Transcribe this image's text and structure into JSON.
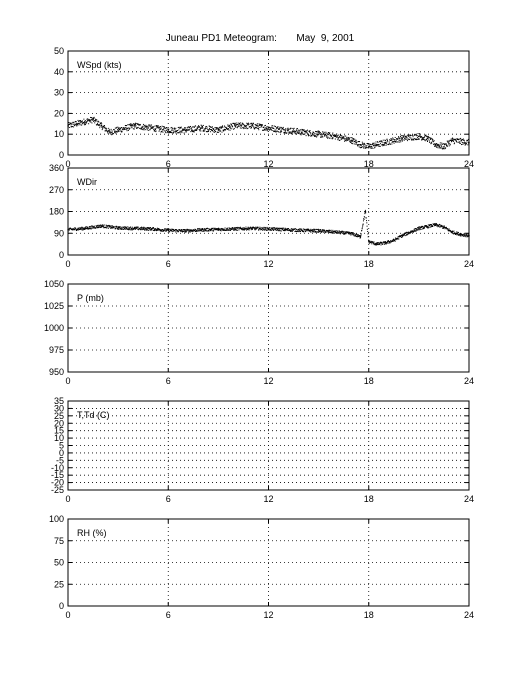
{
  "title": "Juneau PD1 Meteogram:       May  9, 2001",
  "chart_data": [
    {
      "type": "scatter",
      "label": "WSpd (kts)",
      "xlim": [
        0,
        24
      ],
      "xticks": [
        0,
        6,
        12,
        18,
        24
      ],
      "ylim": [
        0,
        50
      ],
      "yticks": [
        0,
        10,
        20,
        30,
        40,
        50
      ],
      "grid": true,
      "series": [
        {
          "x": [
            0,
            0.5,
            1,
            1.5,
            2,
            2.5,
            3,
            4,
            5,
            6,
            7,
            8,
            9,
            10,
            11,
            12,
            13,
            14,
            15,
            16,
            17,
            17.5,
            18,
            18.5,
            19,
            20,
            21,
            21.5,
            22,
            22.5,
            23,
            24
          ],
          "y": [
            14,
            15,
            16,
            17,
            14,
            11,
            12,
            14,
            13,
            12,
            12,
            13,
            12,
            14,
            14,
            13,
            12,
            11,
            10,
            9,
            7,
            5,
            4,
            5,
            6,
            8,
            9,
            8,
            5,
            4,
            7,
            6
          ]
        }
      ]
    },
    {
      "type": "scatter",
      "label": "WDir",
      "xlim": [
        0,
        24
      ],
      "xticks": [
        0,
        6,
        12,
        18,
        24
      ],
      "ylim": [
        0,
        360
      ],
      "yticks": [
        0,
        90,
        180,
        270,
        360
      ],
      "grid": true,
      "series": [
        {
          "x": [
            0,
            1,
            2,
            3,
            4,
            5,
            6,
            7,
            8,
            9,
            10,
            11,
            12,
            13,
            14,
            15,
            16,
            17,
            17.5,
            17.8,
            18,
            18.5,
            19,
            19.5,
            20,
            21,
            22,
            22.5,
            23,
            23.5,
            24
          ],
          "y": [
            105,
            110,
            120,
            112,
            110,
            108,
            102,
            100,
            104,
            106,
            108,
            110,
            108,
            105,
            102,
            100,
            95,
            88,
            75,
            180,
            55,
            45,
            50,
            60,
            80,
            110,
            125,
            115,
            95,
            85,
            80
          ]
        }
      ]
    },
    {
      "type": "scatter",
      "label": "P (mb)",
      "xlim": [
        0,
        24
      ],
      "xticks": [
        0,
        6,
        12,
        18,
        24
      ],
      "ylim": [
        950,
        1050
      ],
      "yticks": [
        950,
        975,
        1000,
        1025,
        1050
      ],
      "grid": true,
      "series": []
    },
    {
      "type": "scatter",
      "label": "T,Td (C)",
      "xlim": [
        0,
        24
      ],
      "xticks": [
        0,
        6,
        12,
        18,
        24
      ],
      "ylim": [
        -25,
        35
      ],
      "yticks": [
        -25,
        -15,
        -5,
        5,
        15,
        25,
        35
      ],
      "extra_yticks": [
        -20,
        -10,
        0,
        10,
        20,
        30
      ],
      "grid": true,
      "series": []
    },
    {
      "type": "scatter",
      "label": "RH (%)",
      "xlim": [
        0,
        24
      ],
      "xticks": [
        0,
        6,
        12,
        18,
        24
      ],
      "ylim": [
        0,
        100
      ],
      "yticks": [
        0,
        25,
        50,
        75,
        100
      ],
      "grid": true,
      "series": []
    }
  ]
}
